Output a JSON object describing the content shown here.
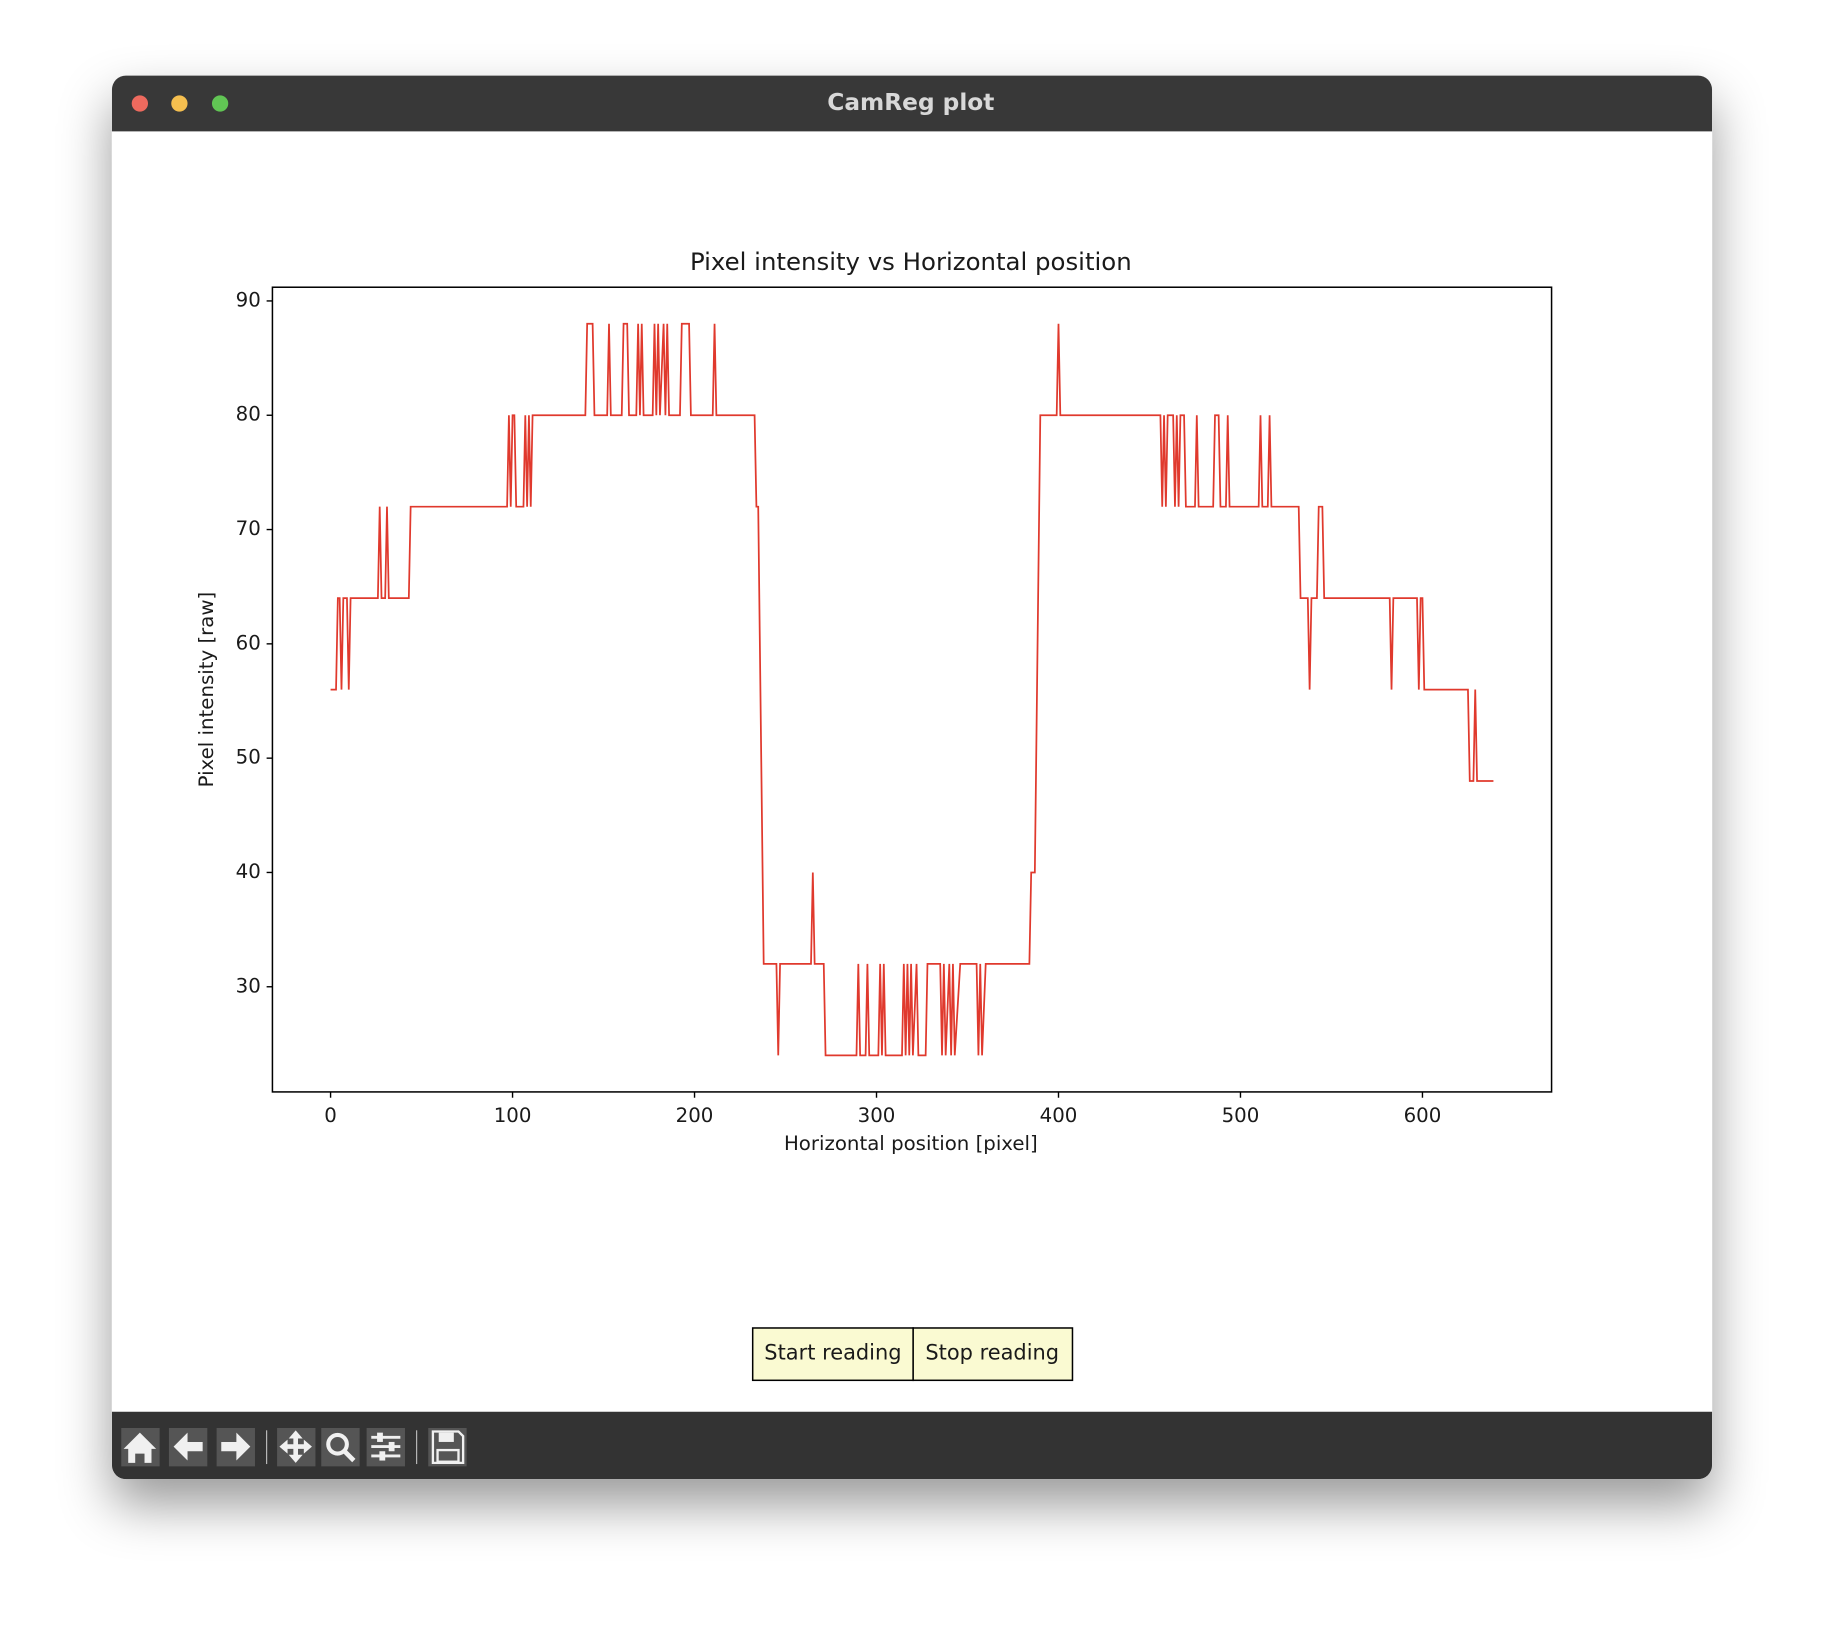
{
  "window": {
    "title": "CamReg plot"
  },
  "chart_data": {
    "type": "line",
    "title": "Pixel intensity vs Horizontal position",
    "x_label": "Horizontal position [pixel]",
    "y_label": "Pixel intensity [raw]",
    "xlim": [
      -31.95,
      670.95
    ],
    "xticks": [
      0,
      100,
      200,
      300,
      400,
      500,
      600
    ],
    "ylim": [
      20.8,
      91.2
    ],
    "yticks": [
      30,
      40,
      50,
      60,
      70,
      80,
      90
    ],
    "grid": false,
    "series": [
      {
        "color": "#e0392d",
        "x": [
          0,
          3,
          4,
          5,
          6,
          7,
          9,
          10,
          11,
          26,
          27,
          28,
          30,
          31,
          32,
          43,
          44,
          97,
          98,
          99,
          100,
          101,
          102,
          106,
          107,
          108,
          109,
          110,
          111,
          112,
          140,
          141,
          144,
          145,
          152,
          153,
          154,
          160,
          161,
          163,
          164,
          168,
          169,
          170,
          171,
          172,
          177,
          178,
          179,
          180,
          181,
          183,
          184,
          185,
          186,
          192,
          193,
          197,
          198,
          210,
          211,
          212,
          233,
          234,
          235,
          238,
          245,
          246,
          247,
          264,
          265,
          266,
          271,
          272,
          289,
          290,
          291,
          294,
          295,
          296,
          301,
          302,
          303,
          304,
          305,
          314,
          315,
          316,
          317,
          318,
          319,
          320,
          322,
          323,
          327,
          328,
          335,
          336,
          337,
          338,
          340,
          341,
          342,
          343,
          346,
          355,
          356,
          357,
          358,
          360,
          384,
          385,
          387,
          390,
          399,
          400,
          401,
          456,
          457,
          458,
          459,
          460,
          463,
          464,
          465,
          466,
          467,
          469,
          470,
          475,
          476,
          477,
          485,
          486,
          488,
          489,
          492,
          493,
          494,
          510,
          511,
          512,
          515,
          516,
          517,
          532,
          533,
          537,
          538,
          539,
          542,
          543,
          545,
          546,
          582,
          583,
          584,
          597,
          598,
          599,
          600,
          601,
          625,
          626,
          628,
          629,
          630,
          639
        ],
        "values": [
          56,
          56,
          64,
          64,
          56,
          64,
          64,
          56,
          64,
          64,
          72,
          64,
          64,
          72,
          64,
          64,
          72,
          72,
          80,
          72,
          80,
          80,
          72,
          72,
          80,
          72,
          80,
          72,
          80,
          80,
          80,
          88,
          88,
          80,
          80,
          88,
          80,
          80,
          88,
          88,
          80,
          80,
          88,
          80,
          88,
          80,
          80,
          88,
          80,
          88,
          80,
          88,
          80,
          88,
          80,
          80,
          88,
          88,
          80,
          80,
          88,
          80,
          80,
          72,
          72,
          32,
          32,
          24,
          32,
          32,
          40,
          32,
          32,
          24,
          24,
          32,
          24,
          24,
          32,
          24,
          24,
          32,
          24,
          32,
          24,
          24,
          32,
          24,
          32,
          24,
          32,
          24,
          32,
          24,
          24,
          32,
          32,
          24,
          32,
          24,
          32,
          24,
          32,
          24,
          32,
          32,
          24,
          32,
          24,
          32,
          32,
          40,
          40,
          80,
          80,
          88,
          80,
          80,
          72,
          80,
          72,
          80,
          80,
          72,
          80,
          72,
          80,
          80,
          72,
          72,
          80,
          72,
          72,
          80,
          80,
          72,
          72,
          80,
          72,
          72,
          80,
          72,
          72,
          80,
          72,
          72,
          64,
          64,
          56,
          64,
          64,
          72,
          72,
          64,
          64,
          56,
          64,
          64,
          56,
          64,
          64,
          56,
          56,
          48,
          48,
          56,
          48,
          48
        ]
      }
    ]
  },
  "buttons": [
    "Start reading",
    "Stop reading"
  ]
}
